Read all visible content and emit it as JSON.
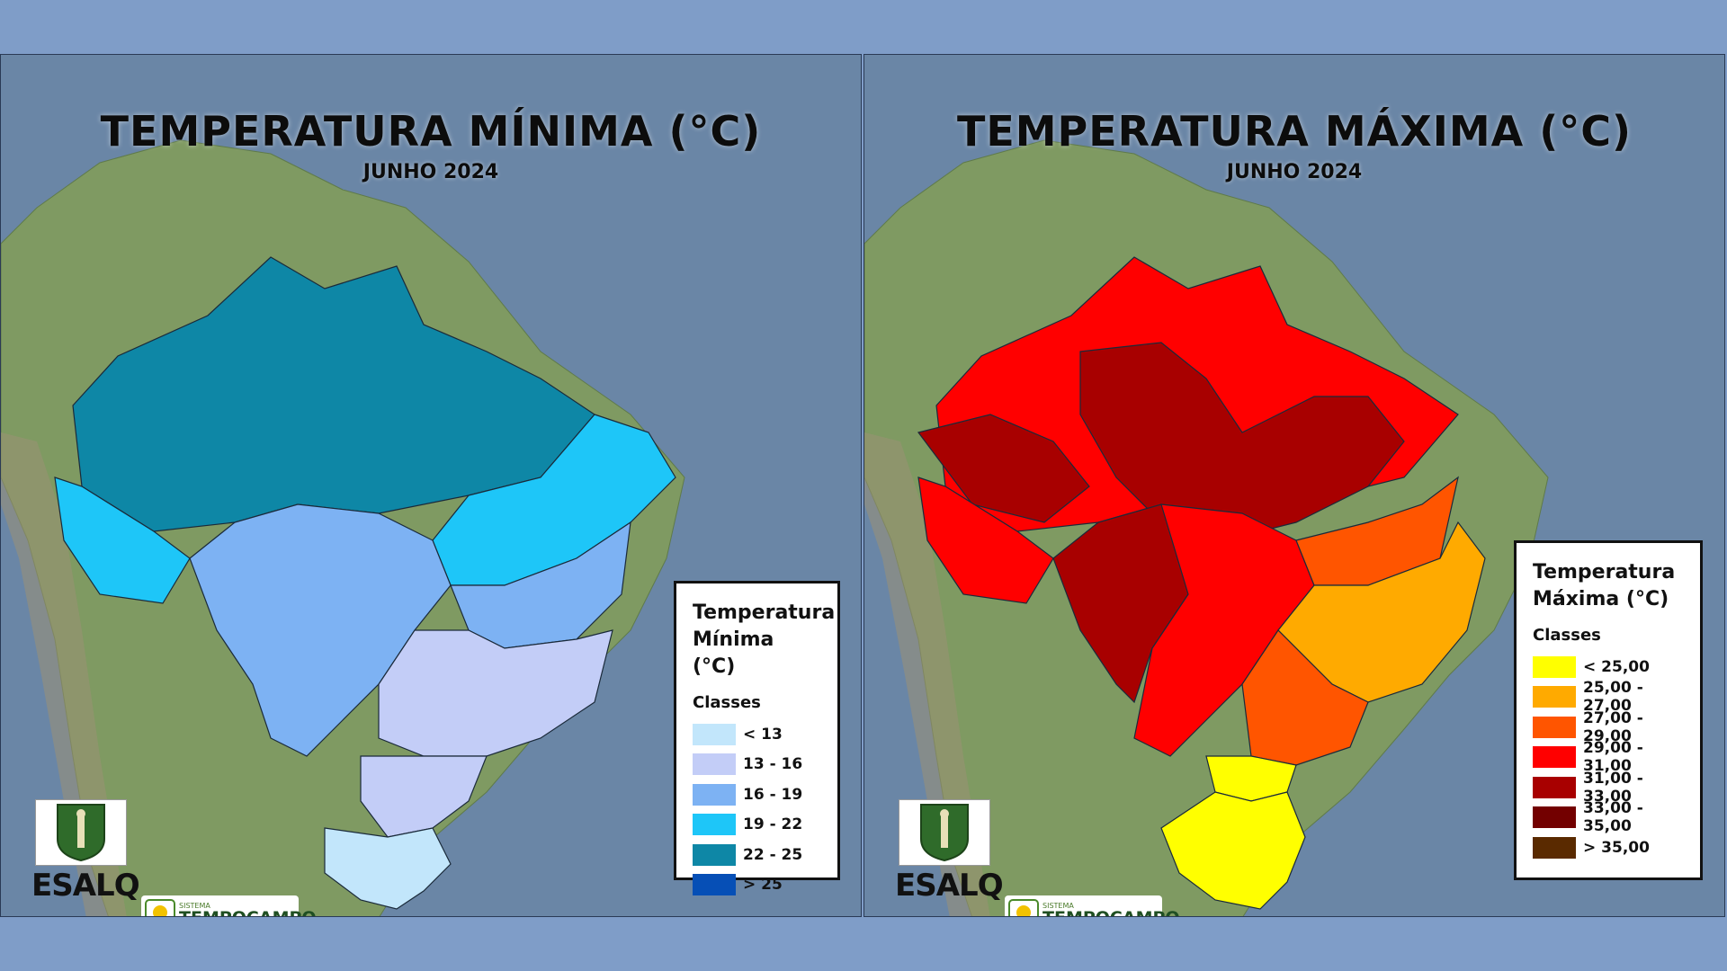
{
  "panels": [
    {
      "title": "TEMPERATURA MÍNIMA (°C)",
      "subtitle": "JUNHO 2024",
      "legend": {
        "title_line1": "Temperatura",
        "title_line2": "Mínima (°C)",
        "classes_label": "Classes",
        "items": [
          {
            "label": "< 13",
            "color": "#c2e6fb"
          },
          {
            "label": "13 - 16",
            "color": "#c3cdf7"
          },
          {
            "label": "16 - 19",
            "color": "#7db2f3"
          },
          {
            "label": "19 - 22",
            "color": "#1ec6f8"
          },
          {
            "label": "22 - 25",
            "color": "#0e87a6"
          },
          {
            "label": "> 25",
            "color": "#064fb6"
          }
        ]
      },
      "logo_text": "ESALQ",
      "sistema_label": "SISTEMA",
      "tempocampo_label": "TEMPOCAMPO"
    },
    {
      "title": "TEMPERATURA MÁXIMA (°C)",
      "subtitle": "JUNHO 2024",
      "legend": {
        "title_line1": "Temperatura",
        "title_line2": "Máxima (°C)",
        "classes_label": "Classes",
        "items": [
          {
            "label": "< 25,00",
            "color": "#ffff00"
          },
          {
            "label": "25,00 - 27,00",
            "color": "#ffaa00"
          },
          {
            "label": "27,00 - 29,00",
            "color": "#ff5500"
          },
          {
            "label": "29,00 - 31,00",
            "color": "#ff0000"
          },
          {
            "label": "31,00 - 33,00",
            "color": "#a80000"
          },
          {
            "label": "33,00 - 35,00",
            "color": "#730000"
          },
          {
            "label": "> 35,00",
            "color": "#5a2a00"
          }
        ]
      },
      "logo_text": "ESALQ",
      "sistema_label": "SISTEMA",
      "tempocampo_label": "TEMPOCAMPO"
    }
  ],
  "colors": {
    "background": "#7f9dc8",
    "ocean": "#6a86a6",
    "land": "#7f9a62"
  }
}
